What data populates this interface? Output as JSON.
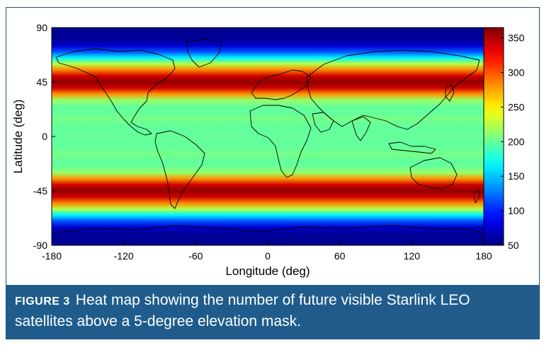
{
  "chart_data": {
    "type": "heatmap",
    "xlabel": "Longitude (deg)",
    "ylabel": "Latitude (deg)",
    "xlim": [
      -180,
      180
    ],
    "ylim": [
      -90,
      90
    ],
    "x_ticks": [
      "-180",
      "-120",
      "-60",
      "0",
      "60",
      "120",
      "180"
    ],
    "y_ticks": [
      "90",
      "45",
      "0",
      "-45",
      "-90"
    ],
    "colorbar": {
      "range": [
        50,
        365
      ],
      "ticks": [
        "350",
        "300",
        "250",
        "200",
        "150",
        "100",
        "50"
      ],
      "colormap": "jet"
    },
    "latitude_profile": {
      "latitudes": [
        -90,
        -80,
        -75,
        -70,
        -65,
        -60,
        -55,
        -50,
        -45,
        -40,
        -35,
        -30,
        -25,
        -20,
        -15,
        -10,
        -5,
        0,
        5,
        10,
        15,
        20,
        25,
        30,
        35,
        40,
        45,
        50,
        55,
        60,
        65,
        70,
        75,
        80,
        90
      ],
      "values": [
        55,
        58,
        75,
        115,
        165,
        225,
        285,
        340,
        360,
        340,
        280,
        215,
        200,
        198,
        205,
        200,
        198,
        200,
        198,
        200,
        205,
        198,
        200,
        215,
        280,
        340,
        360,
        340,
        285,
        225,
        165,
        115,
        75,
        58,
        55
      ]
    }
  },
  "caption": {
    "label": "FIGURE 3",
    "text": "Heat map showing the number of future visible Starlink LEO satellites above a 5-degree elevation mask."
  }
}
